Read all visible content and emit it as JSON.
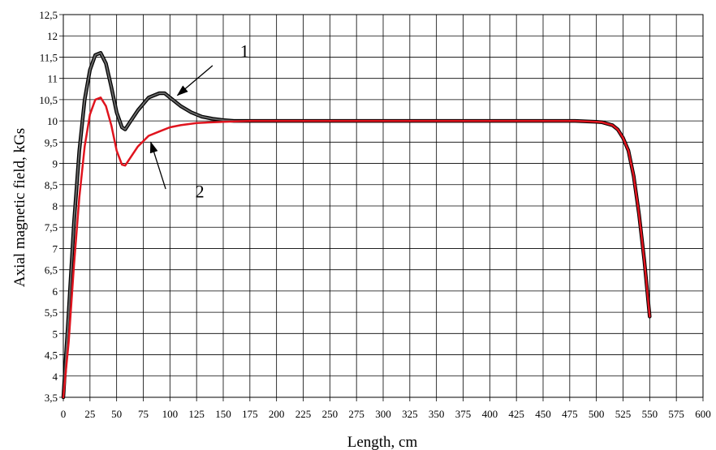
{
  "chart_data": {
    "type": "line",
    "title": "",
    "xlabel": "Length, cm",
    "ylabel": "Axial magnetic field, kGs",
    "xlim": [
      0,
      600
    ],
    "ylim": [
      3.5,
      12.5
    ],
    "grid": true,
    "legend": "none",
    "x_ticks": [
      "0",
      "25",
      "50",
      "75",
      "100",
      "125",
      "150",
      "175",
      "200",
      "225",
      "250",
      "275",
      "300",
      "325",
      "350",
      "375",
      "400",
      "425",
      "450",
      "475",
      "500",
      "525",
      "550",
      "575",
      "600"
    ],
    "y_ticks": [
      "3,5",
      "4",
      "4,5",
      "5",
      "5,5",
      "6",
      "6,5",
      "7",
      "7,5",
      "8",
      "8,5",
      "9",
      "9,5",
      "10",
      "10,5",
      "11",
      "11,5",
      "12",
      "12,5"
    ],
    "series": [
      {
        "color": "#666666",
        "outline": "#000000",
        "points": [
          [
            0,
            3.5
          ],
          [
            5,
            5.5
          ],
          [
            10,
            7.6
          ],
          [
            15,
            9.3
          ],
          [
            20,
            10.5
          ],
          [
            25,
            11.2
          ],
          [
            30,
            11.55
          ],
          [
            35,
            11.6
          ],
          [
            40,
            11.35
          ],
          [
            45,
            10.8
          ],
          [
            50,
            10.2
          ],
          [
            55,
            9.85
          ],
          [
            58,
            9.8
          ],
          [
            62,
            9.95
          ],
          [
            70,
            10.25
          ],
          [
            80,
            10.55
          ],
          [
            90,
            10.65
          ],
          [
            95,
            10.65
          ],
          [
            100,
            10.55
          ],
          [
            105,
            10.45
          ],
          [
            110,
            10.35
          ],
          [
            120,
            10.2
          ],
          [
            130,
            10.1
          ],
          [
            140,
            10.05
          ],
          [
            150,
            10.02
          ],
          [
            160,
            10.0
          ],
          [
            175,
            10.0
          ],
          [
            200,
            10.0
          ],
          [
            250,
            10.0
          ],
          [
            300,
            10.0
          ],
          [
            350,
            10.0
          ],
          [
            400,
            10.0
          ],
          [
            450,
            10.0
          ],
          [
            480,
            10.0
          ],
          [
            500,
            9.98
          ],
          [
            505,
            9.97
          ],
          [
            515,
            9.9
          ],
          [
            520,
            9.8
          ],
          [
            525,
            9.6
          ],
          [
            530,
            9.3
          ],
          [
            535,
            8.7
          ],
          [
            540,
            7.8
          ],
          [
            545,
            6.7
          ],
          [
            550,
            5.4
          ]
        ]
      },
      {
        "color": "#e0141e",
        "points": [
          [
            0,
            3.5
          ],
          [
            5,
            4.8
          ],
          [
            10,
            6.6
          ],
          [
            15,
            8.2
          ],
          [
            20,
            9.4
          ],
          [
            25,
            10.15
          ],
          [
            30,
            10.5
          ],
          [
            35,
            10.55
          ],
          [
            40,
            10.35
          ],
          [
            45,
            9.9
          ],
          [
            50,
            9.3
          ],
          [
            55,
            8.97
          ],
          [
            58,
            8.95
          ],
          [
            62,
            9.1
          ],
          [
            70,
            9.4
          ],
          [
            80,
            9.65
          ],
          [
            90,
            9.75
          ],
          [
            100,
            9.85
          ],
          [
            110,
            9.9
          ],
          [
            125,
            9.95
          ],
          [
            150,
            9.98
          ],
          [
            175,
            10.0
          ],
          [
            200,
            10.0
          ],
          [
            250,
            10.0
          ],
          [
            300,
            10.0
          ],
          [
            350,
            10.0
          ],
          [
            400,
            10.0
          ],
          [
            450,
            10.0
          ],
          [
            480,
            10.0
          ],
          [
            500,
            9.98
          ],
          [
            505,
            9.97
          ],
          [
            515,
            9.9
          ],
          [
            520,
            9.8
          ],
          [
            525,
            9.6
          ],
          [
            530,
            9.3
          ],
          [
            535,
            8.7
          ],
          [
            540,
            7.8
          ],
          [
            545,
            6.7
          ],
          [
            550,
            5.4
          ]
        ]
      }
    ],
    "annotations": [
      {
        "text": "1",
        "x": 170,
        "y": 11.5
      },
      {
        "text": "2",
        "x": 128,
        "y": 8.2
      }
    ],
    "arrows": [
      {
        "from": [
          140,
          11.3
        ],
        "to": [
          107,
          10.6
        ]
      },
      {
        "from": [
          96,
          8.4
        ],
        "to": [
          82,
          9.5
        ]
      }
    ]
  }
}
